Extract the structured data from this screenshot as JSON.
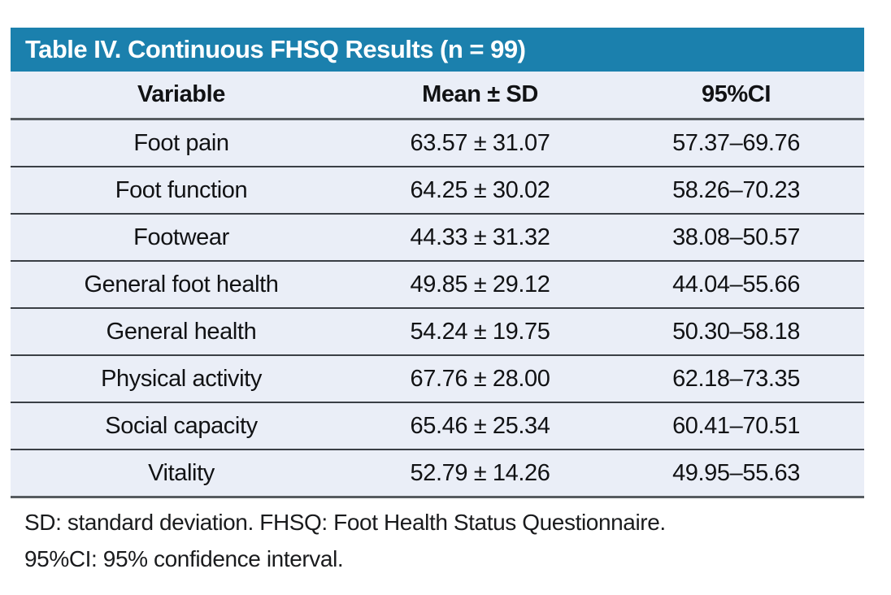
{
  "table": {
    "title": "Table IV. Continuous FHSQ Results (n = 99)",
    "columns": [
      "Variable",
      "Mean ± SD",
      "95%CI"
    ],
    "rows": [
      {
        "variable": "Foot pain",
        "mean_sd": "63.57 ± 31.07",
        "ci": "57.37–69.76"
      },
      {
        "variable": "Foot function",
        "mean_sd": "64.25 ± 30.02",
        "ci": "58.26–70.23"
      },
      {
        "variable": "Footwear",
        "mean_sd": "44.33 ± 31.32",
        "ci": "38.08–50.57"
      },
      {
        "variable": "General foot health",
        "mean_sd": "49.85 ± 29.12",
        "ci": "44.04–55.66"
      },
      {
        "variable": "General health",
        "mean_sd": "54.24 ± 19.75",
        "ci": "50.30–58.18"
      },
      {
        "variable": "Physical activity",
        "mean_sd": "67.76 ± 28.00",
        "ci": "62.18–73.35"
      },
      {
        "variable": "Social capacity",
        "mean_sd": "65.46 ± 25.34",
        "ci": "60.41–70.51"
      },
      {
        "variable": "Vitality",
        "mean_sd": "52.79 ± 14.26",
        "ci": "49.95–55.63"
      }
    ],
    "footnotes": [
      "SD: standard deviation. FHSQ: Foot Health Status Questionnaire.",
      "95%CI: 95% confidence interval."
    ],
    "colors": {
      "title_bar_bg": "#1b80ad",
      "title_text": "#ffffff",
      "row_bg": "#eaeef7",
      "rule_color": "#565b60",
      "body_text": "#111214"
    },
    "sample_size": "n = 99"
  }
}
